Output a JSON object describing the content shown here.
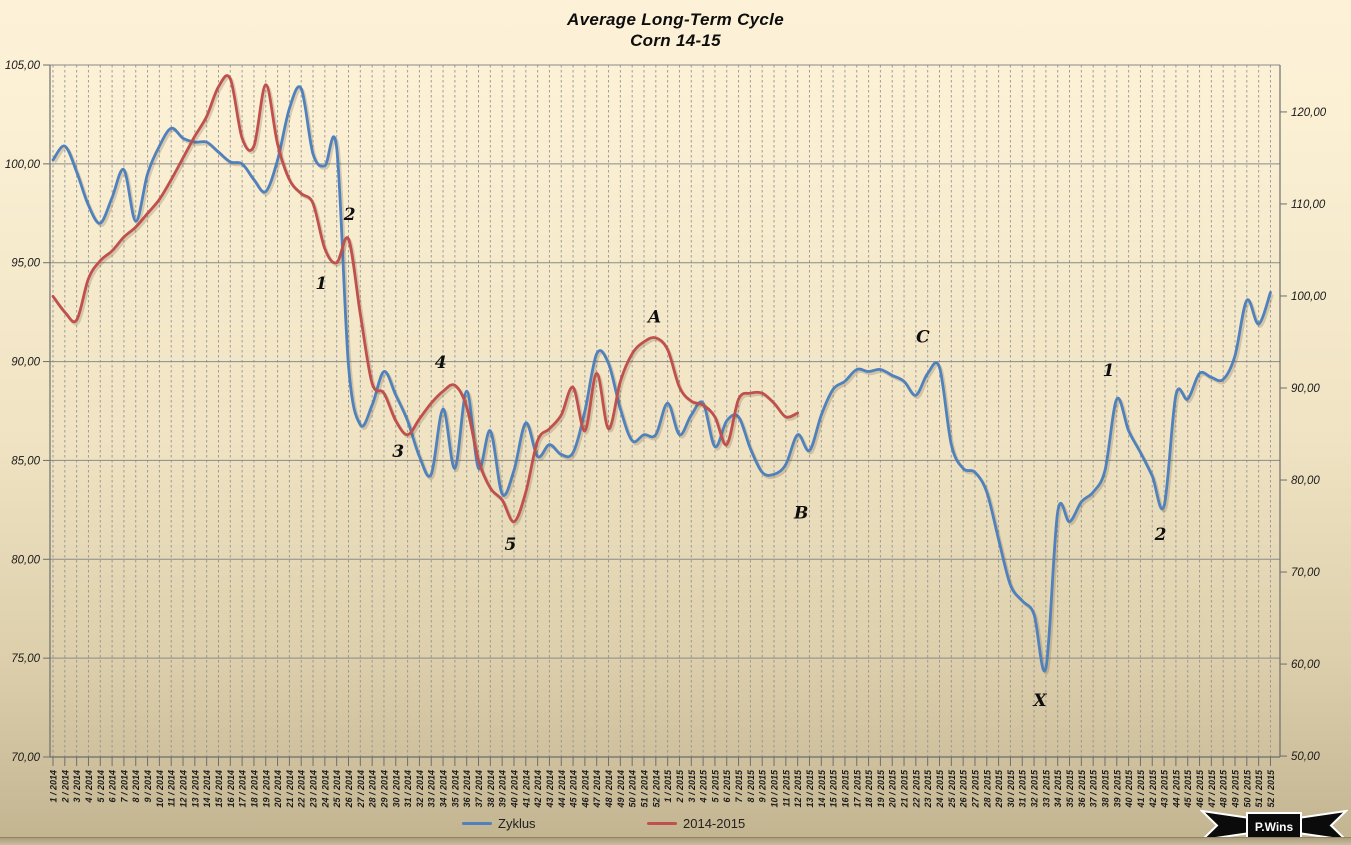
{
  "title": {
    "line1": "Average Long-Term Cycle",
    "line2": "Corn 14-15"
  },
  "legend": [
    {
      "label": "Zyklus",
      "color": "#4F81BD"
    },
    {
      "label": "2014-2015",
      "color": "#C0504D"
    }
  ],
  "branding": {
    "logo_text": "P.Wins"
  },
  "chart_data": {
    "type": "line",
    "title": "Average Long-Term Cycle",
    "subtitle": "Corn 14-15",
    "legend_position": "bottom",
    "grid": {
      "vertical": "dashed-per-week",
      "horizontal": "solid-per-5-units"
    },
    "left_axis": {
      "min": 70,
      "max": 105,
      "ticks": [
        {
          "label": "105,00",
          "value": 105
        },
        {
          "label": "100,00",
          "value": 100
        },
        {
          "label": "95,00",
          "value": 95
        },
        {
          "label": "90,00",
          "value": 90
        },
        {
          "label": "85,00",
          "value": 85
        },
        {
          "label": "80,00",
          "value": 80
        },
        {
          "label": "75,00",
          "value": 75
        },
        {
          "label": "70,00",
          "value": 70
        }
      ]
    },
    "right_axis": {
      "min": 49.9,
      "max": 125.1,
      "ticks": [
        {
          "label": "120,00",
          "value": 120
        },
        {
          "label": "110,00",
          "value": 110
        },
        {
          "label": "100,00",
          "value": 100
        },
        {
          "label": "90,00",
          "value": 90
        },
        {
          "label": "80,00",
          "value": 80
        },
        {
          "label": "70,00",
          "value": 70
        },
        {
          "label": "60,00",
          "value": 60
        },
        {
          "label": "50,00",
          "value": 50
        }
      ]
    },
    "categories": [
      "1 / 2014",
      "2 / 2014",
      "3 / 2014",
      "4 / 2014",
      "5 / 2014",
      "6 / 2014",
      "7 / 2014",
      "8 / 2014",
      "9 / 2014",
      "10 / 2014",
      "11 / 2014",
      "12 / 2014",
      "13 / 2014",
      "14 / 2014",
      "15 / 2014",
      "16 / 2014",
      "17 / 2014",
      "18 / 2014",
      "19 / 2014",
      "20 / 2014",
      "21 / 2014",
      "22 / 2014",
      "23 / 2014",
      "24 / 2014",
      "25 / 2014",
      "26 / 2014",
      "27 / 2014",
      "28 / 2014",
      "29 / 2014",
      "30 / 2014",
      "31 / 2014",
      "32 / 2014",
      "33 / 2014",
      "34 / 2014",
      "35 / 2014",
      "36 / 2014",
      "37 / 2014",
      "38 / 2014",
      "39 / 2014",
      "40 / 2014",
      "41 / 2014",
      "42 / 2014",
      "43 / 2014",
      "44 / 2014",
      "45 / 2014",
      "46 / 2014",
      "47 / 2014",
      "48 / 2014",
      "49 / 2014",
      "50 / 2014",
      "51 / 2014",
      "52 / 2014",
      "1 / 2015",
      "2 / 2015",
      "3 / 2015",
      "4 / 2015",
      "5 / 2015",
      "6 / 2015",
      "7 / 2015",
      "8 / 2015",
      "9 / 2015",
      "10 / 2015",
      "11 / 2015",
      "12 / 2015",
      "13 / 2015",
      "14 / 2015",
      "15 / 2015",
      "16 / 2015",
      "17 / 2015",
      "18 / 2015",
      "19 / 2015",
      "20 / 2015",
      "21 / 2015",
      "22 / 2015",
      "23 / 2015",
      "24 / 2015",
      "25 / 2015",
      "26 / 2015",
      "27 / 2015",
      "28 / 2015",
      "29 / 2015",
      "30 / 2015",
      "31 / 2015",
      "32 / 2015",
      "33 / 2015",
      "34 / 2015",
      "35 / 2015",
      "36 / 2015",
      "37 / 2015",
      "38 / 2015",
      "39 / 2015",
      "40 / 2015",
      "41 / 2015",
      "42 / 2015",
      "43 / 2015",
      "44 / 2015",
      "45 / 2015",
      "46 / 2015",
      "47 / 2015",
      "48 / 2015",
      "49 / 2015",
      "50 / 2015",
      "51 / 2015",
      "52 / 2015"
    ],
    "series": [
      {
        "name": "Zyklus",
        "color": "#4F81BD",
        "axis": "left",
        "values": [
          100.2,
          100.9,
          99.6,
          97.9,
          97.0,
          98.3,
          99.7,
          97.1,
          99.5,
          100.9,
          101.8,
          101.3,
          101.1,
          101.1,
          100.6,
          100.1,
          100.0,
          99.2,
          98.6,
          100.2,
          102.8,
          103.8,
          100.5,
          99.9,
          100.8,
          89.8,
          86.8,
          87.8,
          89.5,
          88.3,
          87.0,
          85.2,
          84.3,
          87.6,
          84.6,
          88.5,
          84.6,
          86.5,
          83.3,
          84.5,
          86.9,
          85.2,
          85.8,
          85.3,
          85.4,
          87.5,
          90.4,
          89.9,
          87.6,
          86.0,
          86.3,
          86.3,
          87.9,
          86.3,
          87.3,
          87.9,
          85.7,
          87.0,
          87.2,
          85.6,
          84.4,
          84.3,
          84.8,
          86.3,
          85.5,
          87.3,
          88.6,
          89.0,
          89.6,
          89.5,
          89.6,
          89.3,
          89.0,
          88.3,
          89.4,
          89.7,
          85.8,
          84.6,
          84.4,
          83.4,
          81.0,
          78.7,
          77.9,
          77.2,
          74.5,
          82.4,
          81.9,
          82.9,
          83.4,
          84.5,
          88.1,
          86.5,
          85.4,
          84.2,
          82.7,
          88.3,
          88.1,
          89.4,
          89.2,
          89.1,
          90.3,
          93.1,
          91.9,
          93.5
        ]
      },
      {
        "name": "2014-2015",
        "color": "#C0504D",
        "axis": "left",
        "values": [
          93.3,
          92.5,
          92.1,
          94.2,
          95.1,
          95.6,
          96.3,
          96.8,
          97.5,
          98.2,
          99.2,
          100.3,
          101.4,
          102.4,
          103.9,
          104.3,
          101.3,
          100.9,
          104.0,
          101.0,
          99.2,
          98.5,
          98.0,
          95.7,
          95.0,
          96.2,
          92.4,
          88.9,
          88.4,
          87.0,
          86.3,
          87.1,
          87.9,
          88.5,
          88.8,
          87.7,
          85.0,
          83.6,
          83.0,
          81.9,
          83.4,
          86.0,
          86.6,
          87.3,
          88.7,
          86.5,
          89.4,
          86.6,
          89.0,
          90.4,
          91.0,
          91.2,
          90.6,
          88.7,
          88.0,
          87.8,
          87.2,
          85.8,
          88.1,
          88.4,
          88.4,
          87.9,
          87.2,
          87.4
        ]
      }
    ],
    "annotations": [
      {
        "text": "1",
        "series": "2014-2015",
        "week": 23.7,
        "value": 93.9
      },
      {
        "text": "2",
        "series": "2014-2015",
        "week": 26.1,
        "value": 97.4
      },
      {
        "text": "3",
        "series": "2014-2015",
        "week": 30.2,
        "value": 85.4
      },
      {
        "text": "4",
        "series": "2014-2015",
        "week": 33.8,
        "value": 89.9
      },
      {
        "text": "5",
        "series": "2014-2015",
        "week": 39.7,
        "value": 80.7
      },
      {
        "text": "A",
        "series": "2014-2015",
        "week": 51.9,
        "value": 92.2
      },
      {
        "text": "B",
        "series": "Zyklus",
        "week": 64.3,
        "value": 82.3
      },
      {
        "text": "C",
        "series": "Zyklus",
        "week": 74.6,
        "value": 91.2
      },
      {
        "text": "X",
        "series": "Zyklus",
        "week": 84.5,
        "value": 72.8
      },
      {
        "text": "1",
        "series": "Zyklus",
        "week": 90.3,
        "value": 89.5
      },
      {
        "text": "2",
        "series": "Zyklus",
        "week": 94.7,
        "value": 81.2
      }
    ]
  }
}
